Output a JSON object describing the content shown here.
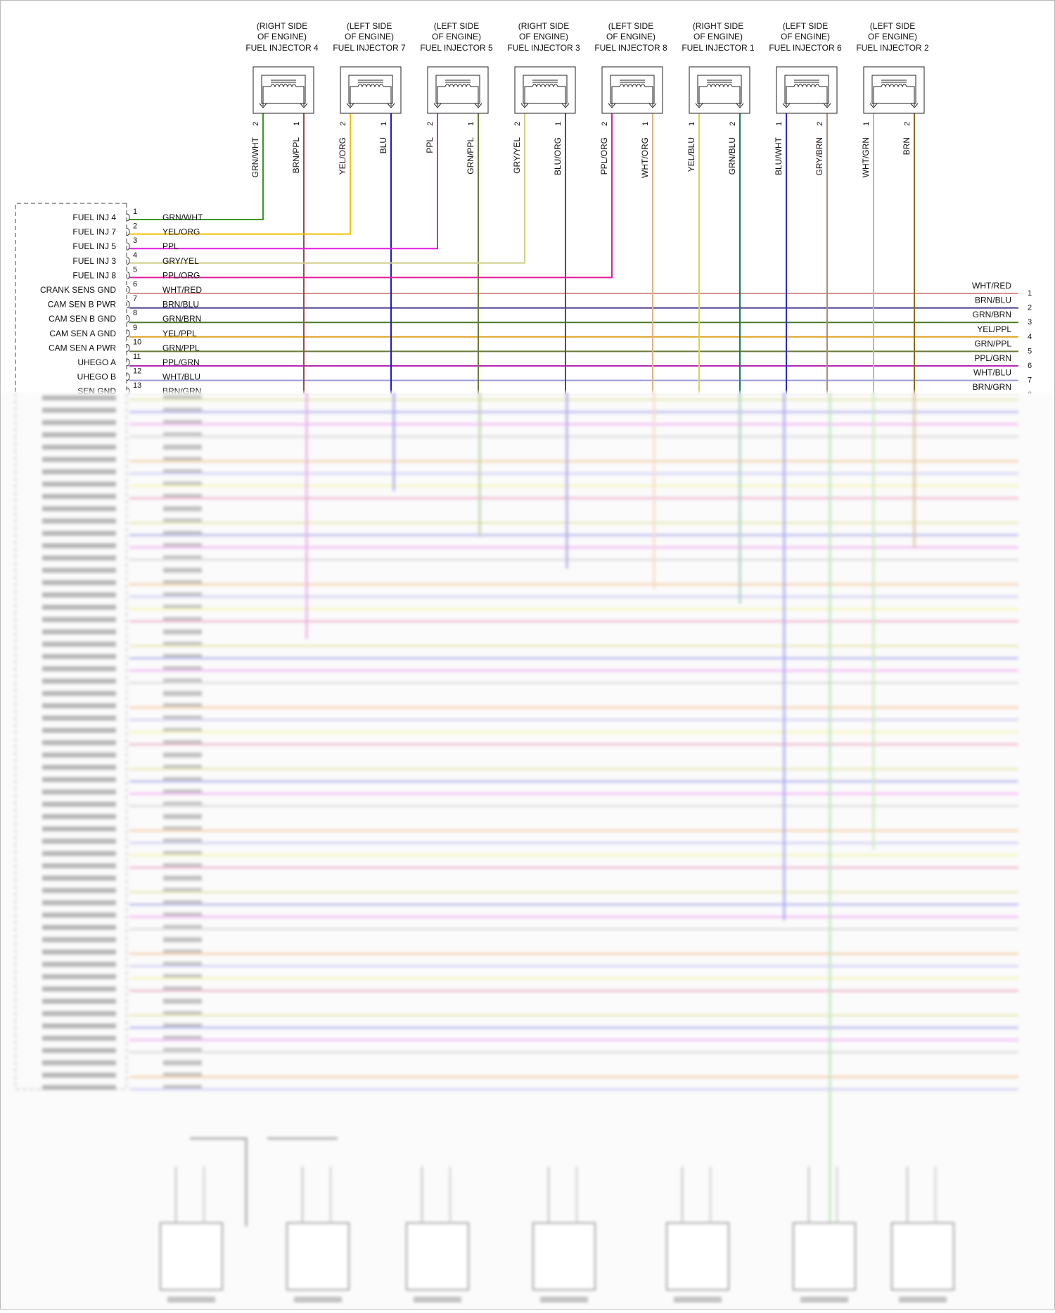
{
  "injectors": [
    {
      "title1": "(RIGHT SIDE",
      "title2": "OF ENGINE)",
      "title3": "FUEL INJECTOR 4",
      "pinA": "2",
      "pinB": "1",
      "wireA": "GRN/WHT",
      "wireB": "BRN/PPL",
      "colorA": "#3a9a1e",
      "colorB": "#9c4a4a"
    },
    {
      "title1": "(LEFT SIDE",
      "title2": "OF ENGINE)",
      "title3": "FUEL INJECTOR 7",
      "pinA": "2",
      "pinB": "1",
      "wireA": "YEL/ORG",
      "wireB": "BLU",
      "colorA": "#f2c200",
      "colorB": "#1a1ad6"
    },
    {
      "title1": "(LEFT SIDE",
      "title2": "OF ENGINE)",
      "title3": "FUEL INJECTOR 5",
      "pinA": "2",
      "pinB": "1",
      "wireA": "PPL",
      "wireB": "GRN/PPL",
      "colorA": "#e21ee0",
      "colorB": "#6a7a3a"
    },
    {
      "title1": "(RIGHT SIDE",
      "title2": "OF ENGINE)",
      "title3": "FUEL INJECTOR 3",
      "pinA": "2",
      "pinB": "1",
      "wireA": "GRY/YEL",
      "wireB": "BLU/ORG",
      "colorA": "#cfcf8a",
      "colorB": "#5a3ab2"
    },
    {
      "title1": "(LEFT SIDE",
      "title2": "OF ENGINE)",
      "title3": "FUEL INJECTOR 8",
      "pinA": "2",
      "pinB": "1",
      "wireA": "PPL/ORG",
      "wireB": "WHT/ORG",
      "colorA": "#e21e9a",
      "colorB": "#e0b48a"
    },
    {
      "title1": "(RIGHT SIDE",
      "title2": "OF ENGINE)",
      "title3": "FUEL INJECTOR 1",
      "pinA": "1",
      "pinB": "2",
      "wireA": "YEL/BLU",
      "wireB": "GRN/BLU",
      "colorA": "#d8d84a",
      "colorB": "#1a7a5a"
    },
    {
      "title1": "(LEFT SIDE",
      "title2": "OF ENGINE)",
      "title3": "FUEL INJECTOR 6",
      "pinA": "1",
      "pinB": "2",
      "wireA": "BLU/WHT",
      "wireB": "GRY/BRN",
      "colorA": "#2a2ac8",
      "colorB": "#a89078"
    },
    {
      "title1": "(LEFT SIDE",
      "title2": "OF ENGINE)",
      "title3": "FUEL INJECTOR 2",
      "pinA": "1",
      "pinB": "2",
      "wireA": "WHT/GRN",
      "wireB": "BRN",
      "colorA": "#9ad08a",
      "colorB": "#8a6a1a"
    }
  ],
  "connector_rows": [
    {
      "label": "FUEL INJ 4",
      "pin": "1",
      "wire": "GRN/WHT",
      "color": "#3a9a1e"
    },
    {
      "label": "FUEL INJ 7",
      "pin": "2",
      "wire": "YEL/ORG",
      "color": "#f2c200"
    },
    {
      "label": "FUEL INJ 5",
      "pin": "3",
      "wire": "PPL",
      "color": "#e21ee0"
    },
    {
      "label": "FUEL INJ 3",
      "pin": "4",
      "wire": "GRY/YEL",
      "color": "#cfcf8a"
    },
    {
      "label": "FUEL INJ 8",
      "pin": "5",
      "wire": "PPL/ORG",
      "color": "#e21e9a"
    },
    {
      "label": "CRANK SENS GND",
      "pin": "6",
      "wire": "WHT/RED",
      "color": "#d89090",
      "right_wire": "WHT/RED",
      "right_pin": "1"
    },
    {
      "label": "CAM SEN B PWR",
      "pin": "7",
      "wire": "BRN/BLU",
      "color": "#4a3a8a",
      "right_wire": "BRN/BLU",
      "right_pin": "2"
    },
    {
      "label": "CAM SEN B GND",
      "pin": "8",
      "wire": "GRN/BRN",
      "color": "#4a7a2a",
      "right_wire": "GRN/BRN",
      "right_pin": "3"
    },
    {
      "label": "CAM SEN A GND",
      "pin": "9",
      "wire": "YEL/PPL",
      "color": "#e0a020",
      "right_wire": "YEL/PPL",
      "right_pin": "4"
    },
    {
      "label": "CAM SEN A PWR",
      "pin": "10",
      "wire": "GRN/PPL",
      "color": "#6a7a3a",
      "right_wire": "GRN/PPL",
      "right_pin": "5"
    },
    {
      "label": "UHEGO A",
      "pin": "11",
      "wire": "PPL/GRN",
      "color": "#b02ab0",
      "right_wire": "PPL/GRN",
      "right_pin": "6"
    },
    {
      "label": "UHEGO B",
      "pin": "12",
      "wire": "WHT/BLU",
      "color": "#9a9ad8",
      "right_wire": "WHT/BLU",
      "right_pin": "7"
    },
    {
      "label": "SEN GND",
      "pin": "13",
      "wire": "BRN/GRN",
      "color": "#7a8a3a",
      "right_wire": "BRN/GRN",
      "right_pin": "8"
    }
  ]
}
